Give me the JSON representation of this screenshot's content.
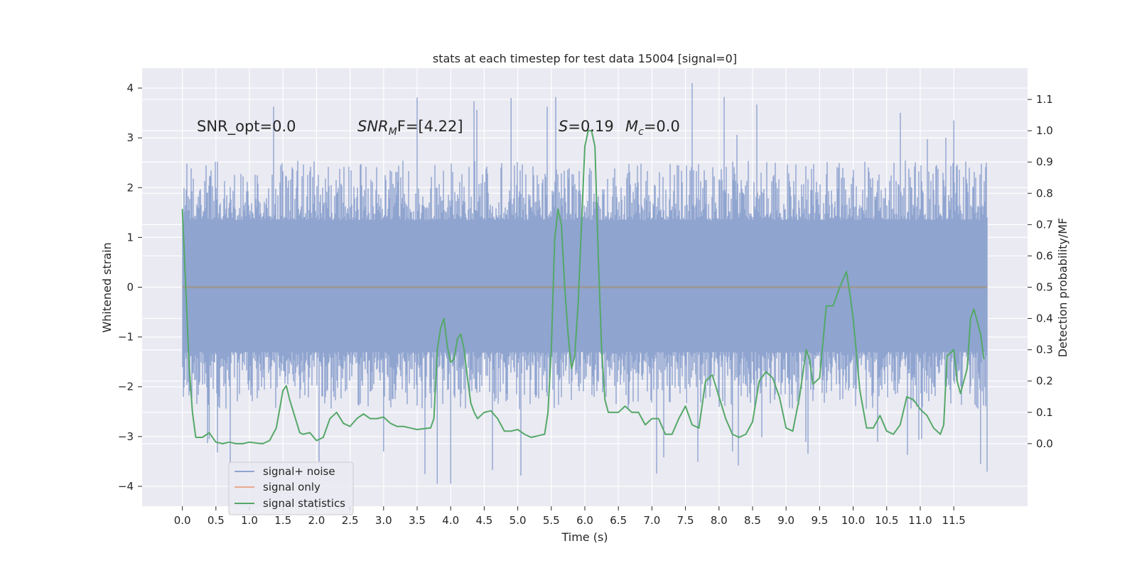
{
  "chart_data": {
    "type": "line",
    "title": "stats at each timestep for test data 15004 [signal=0]",
    "xlabel": "Time (s)",
    "ylabel": "Whitened strain",
    "ylabel_right": "Detection probability/MF",
    "xlim": [
      -0.6,
      12.6
    ],
    "ylim": [
      -4.4,
      4.4
    ],
    "ylim_right": [
      -0.2,
      1.2
    ],
    "x_ticks": [
      "0.0",
      "0.5",
      "1.0",
      "1.5",
      "2.0",
      "2.5",
      "3.0",
      "3.5",
      "4.0",
      "4.5",
      "5.0",
      "5.5",
      "6.0",
      "6.5",
      "7.0",
      "7.5",
      "8.0",
      "8.5",
      "9.0",
      "9.5",
      "10.0",
      "10.5",
      "11.0",
      "11.5"
    ],
    "y_ticks": [
      "4",
      "3",
      "2",
      "1",
      "0",
      "−1",
      "−2",
      "−3",
      "−4"
    ],
    "y_ticks_right": [
      "1.1",
      "1.0",
      "0.9",
      "0.8",
      "0.7",
      "0.6",
      "0.5",
      "0.4",
      "0.3",
      "0.2",
      "0.1",
      "0.0"
    ],
    "grid": true,
    "legend_position": "lower-left",
    "annotations": [
      {
        "id": "snr_opt",
        "text": "SNR_opt=0.0"
      },
      {
        "id": "snr_mf",
        "prefix": "SNR",
        "sub": "M",
        "suffix": "F=[4.22]"
      },
      {
        "id": "s",
        "prefix": "S",
        "suffix": "=0.19"
      },
      {
        "id": "mc",
        "prefix": "M",
        "sub": "c",
        "suffix": "=0.0"
      }
    ],
    "series": [
      {
        "name": "signal+ noise",
        "axis": "left",
        "color": "#8fa4cf",
        "style": "dense noise",
        "x_range": [
          0.0,
          12.0
        ],
        "core_band": [
          -1.3,
          1.35
        ],
        "spike_range": [
          -3.95,
          4.1
        ]
      },
      {
        "name": "signal only",
        "axis": "left",
        "color": "#e8a98f",
        "x": [
          0.0,
          12.0
        ],
        "y": [
          0.0,
          0.0
        ]
      },
      {
        "name": "signal statistics",
        "axis": "right",
        "color": "#55a868",
        "x": [
          0.0,
          0.05,
          0.1,
          0.15,
          0.2,
          0.3,
          0.4,
          0.5,
          0.6,
          0.7,
          0.8,
          0.9,
          1.0,
          1.1,
          1.2,
          1.3,
          1.4,
          1.5,
          1.55,
          1.6,
          1.7,
          1.75,
          1.8,
          1.9,
          2.0,
          2.1,
          2.2,
          2.3,
          2.4,
          2.5,
          2.6,
          2.7,
          2.8,
          2.9,
          3.0,
          3.1,
          3.2,
          3.3,
          3.4,
          3.5,
          3.6,
          3.7,
          3.75,
          3.8,
          3.85,
          3.9,
          3.95,
          4.0,
          4.05,
          4.1,
          4.15,
          4.2,
          4.25,
          4.3,
          4.35,
          4.4,
          4.5,
          4.6,
          4.7,
          4.8,
          4.9,
          5.0,
          5.1,
          5.2,
          5.3,
          5.4,
          5.45,
          5.5,
          5.55,
          5.6,
          5.65,
          5.7,
          5.75,
          5.8,
          5.85,
          5.9,
          5.95,
          6.0,
          6.05,
          6.1,
          6.15,
          6.2,
          6.25,
          6.3,
          6.35,
          6.4,
          6.5,
          6.6,
          6.7,
          6.8,
          6.9,
          7.0,
          7.1,
          7.2,
          7.3,
          7.4,
          7.5,
          7.6,
          7.7,
          7.8,
          7.9,
          8.0,
          8.1,
          8.2,
          8.3,
          8.4,
          8.5,
          8.6,
          8.7,
          8.8,
          8.9,
          9.0,
          9.1,
          9.2,
          9.3,
          9.35,
          9.4,
          9.5,
          9.6,
          9.7,
          9.8,
          9.9,
          9.95,
          10.0,
          10.1,
          10.2,
          10.3,
          10.4,
          10.5,
          10.6,
          10.7,
          10.8,
          10.9,
          11.0,
          11.1,
          11.2,
          11.3,
          11.35,
          11.4,
          11.5,
          11.55,
          11.6,
          11.7,
          11.75,
          11.8,
          11.9,
          11.95
        ],
        "y": [
          0.75,
          0.5,
          0.25,
          0.1,
          0.02,
          0.02,
          0.035,
          0.005,
          0.0,
          0.005,
          0.0,
          0.0,
          0.005,
          0.002,
          0.0,
          0.01,
          0.05,
          0.17,
          0.185,
          0.14,
          0.07,
          0.035,
          0.03,
          0.035,
          0.01,
          0.02,
          0.08,
          0.1,
          0.065,
          0.055,
          0.08,
          0.095,
          0.08,
          0.08,
          0.085,
          0.065,
          0.055,
          0.055,
          0.05,
          0.045,
          0.048,
          0.05,
          0.08,
          0.3,
          0.37,
          0.4,
          0.31,
          0.26,
          0.27,
          0.335,
          0.35,
          0.3,
          0.21,
          0.13,
          0.1,
          0.08,
          0.1,
          0.105,
          0.08,
          0.04,
          0.04,
          0.045,
          0.03,
          0.02,
          0.025,
          0.03,
          0.1,
          0.3,
          0.65,
          0.75,
          0.7,
          0.5,
          0.35,
          0.24,
          0.28,
          0.45,
          0.7,
          0.95,
          1.0,
          1.0,
          0.95,
          0.6,
          0.3,
          0.14,
          0.1,
          0.1,
          0.1,
          0.12,
          0.1,
          0.1,
          0.06,
          0.08,
          0.08,
          0.03,
          0.03,
          0.08,
          0.12,
          0.06,
          0.05,
          0.2,
          0.22,
          0.15,
          0.08,
          0.03,
          0.02,
          0.03,
          0.07,
          0.2,
          0.23,
          0.21,
          0.15,
          0.05,
          0.04,
          0.15,
          0.3,
          0.27,
          0.19,
          0.21,
          0.44,
          0.44,
          0.5,
          0.55,
          0.48,
          0.4,
          0.17,
          0.05,
          0.05,
          0.09,
          0.04,
          0.03,
          0.06,
          0.15,
          0.14,
          0.11,
          0.09,
          0.05,
          0.03,
          0.06,
          0.28,
          0.3,
          0.2,
          0.16,
          0.24,
          0.4,
          0.43,
          0.35,
          0.27
        ]
      }
    ]
  }
}
